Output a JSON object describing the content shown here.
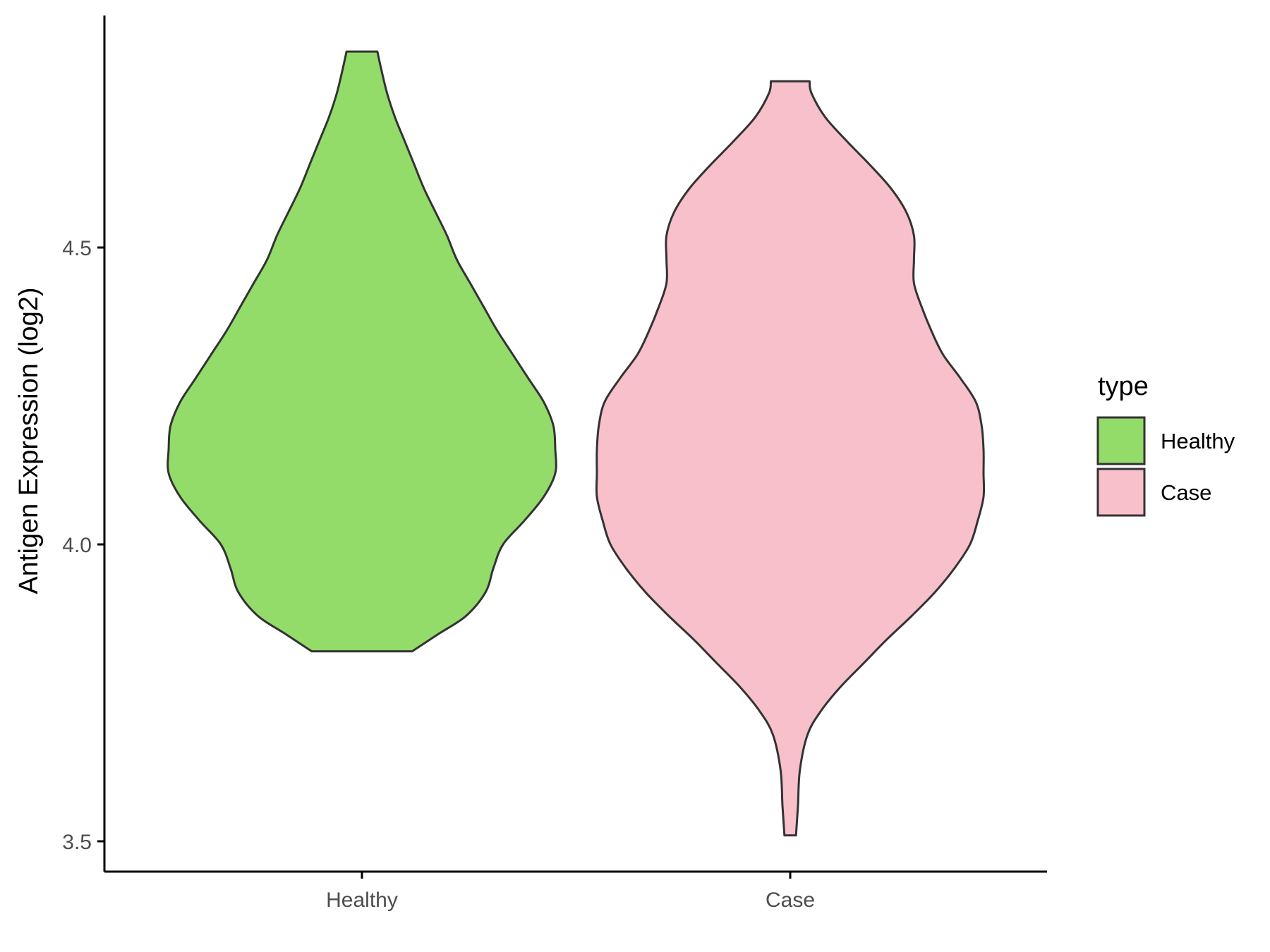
{
  "chart_data": {
    "type": "violin",
    "title": "",
    "xlabel": "",
    "ylabel": "Antigen Expression (log2)",
    "ylim": [
      3.46,
      4.91
    ],
    "yticks": [
      3.5,
      4.0,
      4.5
    ],
    "ytick_labels": [
      "3.5",
      "4.0",
      "4.5"
    ],
    "categories": [
      "Healthy",
      "Case"
    ],
    "legend": {
      "title": "type",
      "position": "right",
      "entries": [
        "Healthy",
        "Case"
      ]
    },
    "series": [
      {
        "name": "Healthy",
        "color": "#93DC6A",
        "min": 3.82,
        "max": 4.83,
        "density_profile": [
          [
            3.82,
            0.26
          ],
          [
            3.85,
            0.4
          ],
          [
            3.88,
            0.54
          ],
          [
            3.92,
            0.64
          ],
          [
            3.96,
            0.68
          ],
          [
            4.0,
            0.73
          ],
          [
            4.04,
            0.84
          ],
          [
            4.08,
            0.94
          ],
          [
            4.12,
            1.0
          ],
          [
            4.16,
            1.0
          ],
          [
            4.2,
            0.99
          ],
          [
            4.24,
            0.94
          ],
          [
            4.28,
            0.86
          ],
          [
            4.32,
            0.78
          ],
          [
            4.36,
            0.7
          ],
          [
            4.4,
            0.63
          ],
          [
            4.44,
            0.56
          ],
          [
            4.48,
            0.49
          ],
          [
            4.52,
            0.44
          ],
          [
            4.56,
            0.38
          ],
          [
            4.6,
            0.32
          ],
          [
            4.64,
            0.27
          ],
          [
            4.68,
            0.22
          ],
          [
            4.72,
            0.17
          ],
          [
            4.76,
            0.13
          ],
          [
            4.8,
            0.1
          ],
          [
            4.83,
            0.08
          ]
        ]
      },
      {
        "name": "Case",
        "color": "#F7C0CB",
        "min": 3.51,
        "max": 4.78,
        "density_profile": [
          [
            3.51,
            0.03
          ],
          [
            3.56,
            0.04
          ],
          [
            3.62,
            0.05
          ],
          [
            3.68,
            0.09
          ],
          [
            3.72,
            0.16
          ],
          [
            3.76,
            0.26
          ],
          [
            3.8,
            0.38
          ],
          [
            3.84,
            0.5
          ],
          [
            3.88,
            0.63
          ],
          [
            3.92,
            0.75
          ],
          [
            3.96,
            0.85
          ],
          [
            4.0,
            0.93
          ],
          [
            4.04,
            0.97
          ],
          [
            4.08,
            1.0
          ],
          [
            4.12,
            1.0
          ],
          [
            4.16,
            1.0
          ],
          [
            4.2,
            0.99
          ],
          [
            4.24,
            0.96
          ],
          [
            4.28,
            0.88
          ],
          [
            4.32,
            0.79
          ],
          [
            4.36,
            0.73
          ],
          [
            4.4,
            0.68
          ],
          [
            4.44,
            0.64
          ],
          [
            4.48,
            0.64
          ],
          [
            4.52,
            0.64
          ],
          [
            4.56,
            0.6
          ],
          [
            4.6,
            0.52
          ],
          [
            4.64,
            0.41
          ],
          [
            4.68,
            0.29
          ],
          [
            4.72,
            0.18
          ],
          [
            4.76,
            0.11
          ],
          [
            4.78,
            0.1
          ]
        ]
      }
    ],
    "grid": false
  }
}
